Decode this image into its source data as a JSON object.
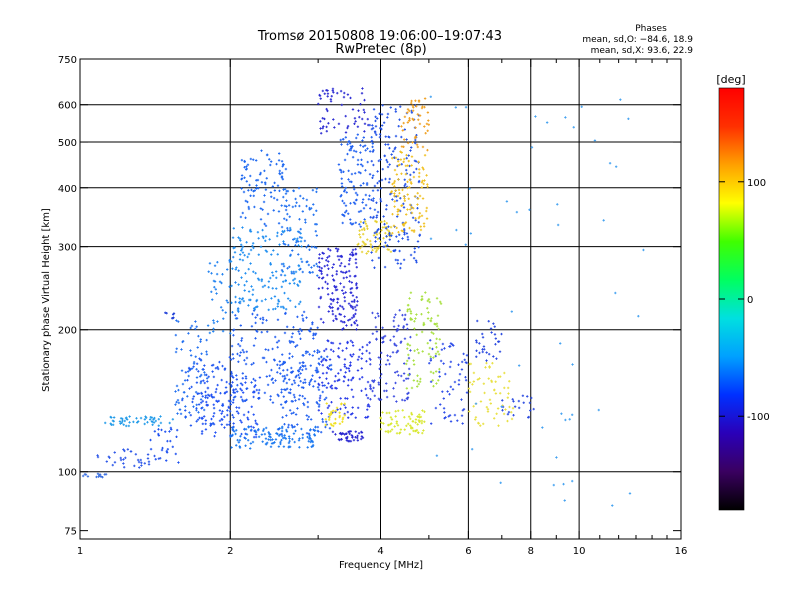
{
  "chart_data": {
    "type": "scatter",
    "title": "Tromsø 20150808 19:06:00–19:07:43",
    "subtitle": "RwPretec (8p)",
    "xlabel": "Frequency [MHz]",
    "ylabel": "Stationary phase Virtual Height [km]",
    "x_scale": "log",
    "y_scale": "log",
    "xlim": [
      1,
      16
    ],
    "ylim": [
      72,
      750
    ],
    "x_ticks": [
      1,
      2,
      4,
      6,
      8,
      10,
      16
    ],
    "x_minor_ticks": [
      3,
      5,
      7,
      9,
      11,
      12,
      13,
      14,
      15
    ],
    "y_ticks": [
      75,
      100,
      200,
      300,
      400,
      500,
      600,
      750
    ],
    "x_grid": [
      2,
      4,
      6,
      8,
      10
    ],
    "y_grid": [
      100,
      200,
      300,
      400,
      500,
      600
    ],
    "grid": true,
    "legend": {
      "title": "Phases",
      "lines": [
        "mean, sd,O: −84.6, 18.9",
        "mean, sd,X:  93.6, 22.9"
      ]
    },
    "colorbar": {
      "label": "[deg]",
      "range": [
        -180,
        180
      ],
      "ticks": [
        100,
        0,
        -100
      ],
      "colors": [
        "#000000",
        "#3a0060",
        "#2a00b8",
        "#0030ff",
        "#00a0ff",
        "#00e0e0",
        "#00ff60",
        "#40ff00",
        "#ffff00",
        "#ffa000",
        "#ff3000",
        "#ff0000"
      ]
    },
    "clusters": [
      {
        "x": [
          1.0,
          1.14
        ],
        "y": [
          97,
          99
        ],
        "n": 14,
        "color": "#3a6fe0"
      },
      {
        "x": [
          1.08,
          1.45
        ],
        "y": [
          102,
          112
        ],
        "n": 35,
        "color": "#2a55e8"
      },
      {
        "x": [
          1.12,
          1.55
        ],
        "y": [
          125,
          131
        ],
        "n": 50,
        "color": "#1f9ae8"
      },
      {
        "x": [
          1.38,
          1.58
        ],
        "y": [
          104,
          124
        ],
        "n": 25,
        "color": "#1a4ef0"
      },
      {
        "x": [
          1.46,
          1.56
        ],
        "y": [
          210,
          218
        ],
        "n": 7,
        "color": "#2040d8"
      },
      {
        "x": [
          1.55,
          1.8
        ],
        "y": [
          130,
          210
        ],
        "n": 70,
        "color": "#1f6ef0"
      },
      {
        "x": [
          1.6,
          2.05
        ],
        "y": [
          125,
          175
        ],
        "n": 90,
        "color": "#1e55f0"
      },
      {
        "x": [
          1.75,
          2.3
        ],
        "y": [
          118,
          160
        ],
        "n": 110,
        "color": "#2050f4"
      },
      {
        "x": [
          1.8,
          2.1
        ],
        "y": [
          195,
          290
        ],
        "n": 45,
        "color": "#1e80f0"
      },
      {
        "x": [
          2.0,
          3.0
        ],
        "y": [
          112,
          125
        ],
        "n": 120,
        "color": "#1a78f0"
      },
      {
        "x": [
          2.0,
          3.0
        ],
        "y": [
          140,
          220
        ],
        "n": 180,
        "color": "#1f5cf0"
      },
      {
        "x": [
          2.0,
          2.8
        ],
        "y": [
          220,
          330
        ],
        "n": 160,
        "color": "#1f8ef0"
      },
      {
        "x": [
          2.1,
          2.6
        ],
        "y": [
          330,
          480
        ],
        "n": 90,
        "color": "#1a66f0"
      },
      {
        "x": [
          2.5,
          3.2
        ],
        "y": [
          120,
          180
        ],
        "n": 110,
        "color": "#2060f0"
      },
      {
        "x": [
          2.5,
          3.0
        ],
        "y": [
          260,
          400
        ],
        "n": 90,
        "color": "#1e70f0"
      },
      {
        "x": [
          3.0,
          3.6
        ],
        "y": [
          200,
          300
        ],
        "n": 160,
        "color": "#2a2ad6"
      },
      {
        "x": [
          3.0,
          3.8
        ],
        "y": [
          130,
          190
        ],
        "n": 120,
        "color": "#2538e8"
      },
      {
        "x": [
          3.2,
          3.7
        ],
        "y": [
          116,
          122
        ],
        "n": 40,
        "color": "#2826d0"
      },
      {
        "x": [
          3.0,
          3.8
        ],
        "y": [
          520,
          650
        ],
        "n": 60,
        "color": "#2a2ad2"
      },
      {
        "x": [
          3.3,
          3.9
        ],
        "y": [
          330,
          520
        ],
        "n": 110,
        "color": "#1f60f0"
      },
      {
        "x": [
          3.6,
          4.2
        ],
        "y": [
          290,
          340
        ],
        "n": 70,
        "color": "#e6d030"
      },
      {
        "x": [
          3.8,
          4.8
        ],
        "y": [
          270,
          600
        ],
        "n": 200,
        "color": "#2050e6"
      },
      {
        "x": [
          3.8,
          4.6
        ],
        "y": [
          140,
          220
        ],
        "n": 110,
        "color": "#3a4ae0"
      },
      {
        "x": [
          4.0,
          4.9
        ],
        "y": [
          120,
          135
        ],
        "n": 70,
        "color": "#d8e830"
      },
      {
        "x": [
          4.2,
          5.0
        ],
        "y": [
          320,
          480
        ],
        "n": 110,
        "color": "#f0c020"
      },
      {
        "x": [
          4.4,
          5.0
        ],
        "y": [
          480,
          620
        ],
        "n": 50,
        "color": "#f0a020"
      },
      {
        "x": [
          4.5,
          5.3
        ],
        "y": [
          150,
          240
        ],
        "n": 90,
        "color": "#a8e040"
      },
      {
        "x": [
          3.1,
          3.4
        ],
        "y": [
          125,
          140
        ],
        "n": 30,
        "color": "#f0e020"
      },
      {
        "x": [
          5.0,
          6.0
        ],
        "y": [
          125,
          190
        ],
        "n": 60,
        "color": "#2a4ae8"
      },
      {
        "x": [
          6.0,
          7.4
        ],
        "y": [
          125,
          170
        ],
        "n": 60,
        "color": "#e8e040"
      },
      {
        "x": [
          6.2,
          7.0
        ],
        "y": [
          170,
          210
        ],
        "n": 30,
        "color": "#2848e0"
      },
      {
        "x": [
          7.0,
          8.2
        ],
        "y": [
          130,
          145
        ],
        "n": 20,
        "color": "#2848e0"
      },
      {
        "x": [
          5.0,
          14.0
        ],
        "y": [
          80,
          700
        ],
        "n": 50,
        "color": "#40a0f0"
      }
    ]
  }
}
